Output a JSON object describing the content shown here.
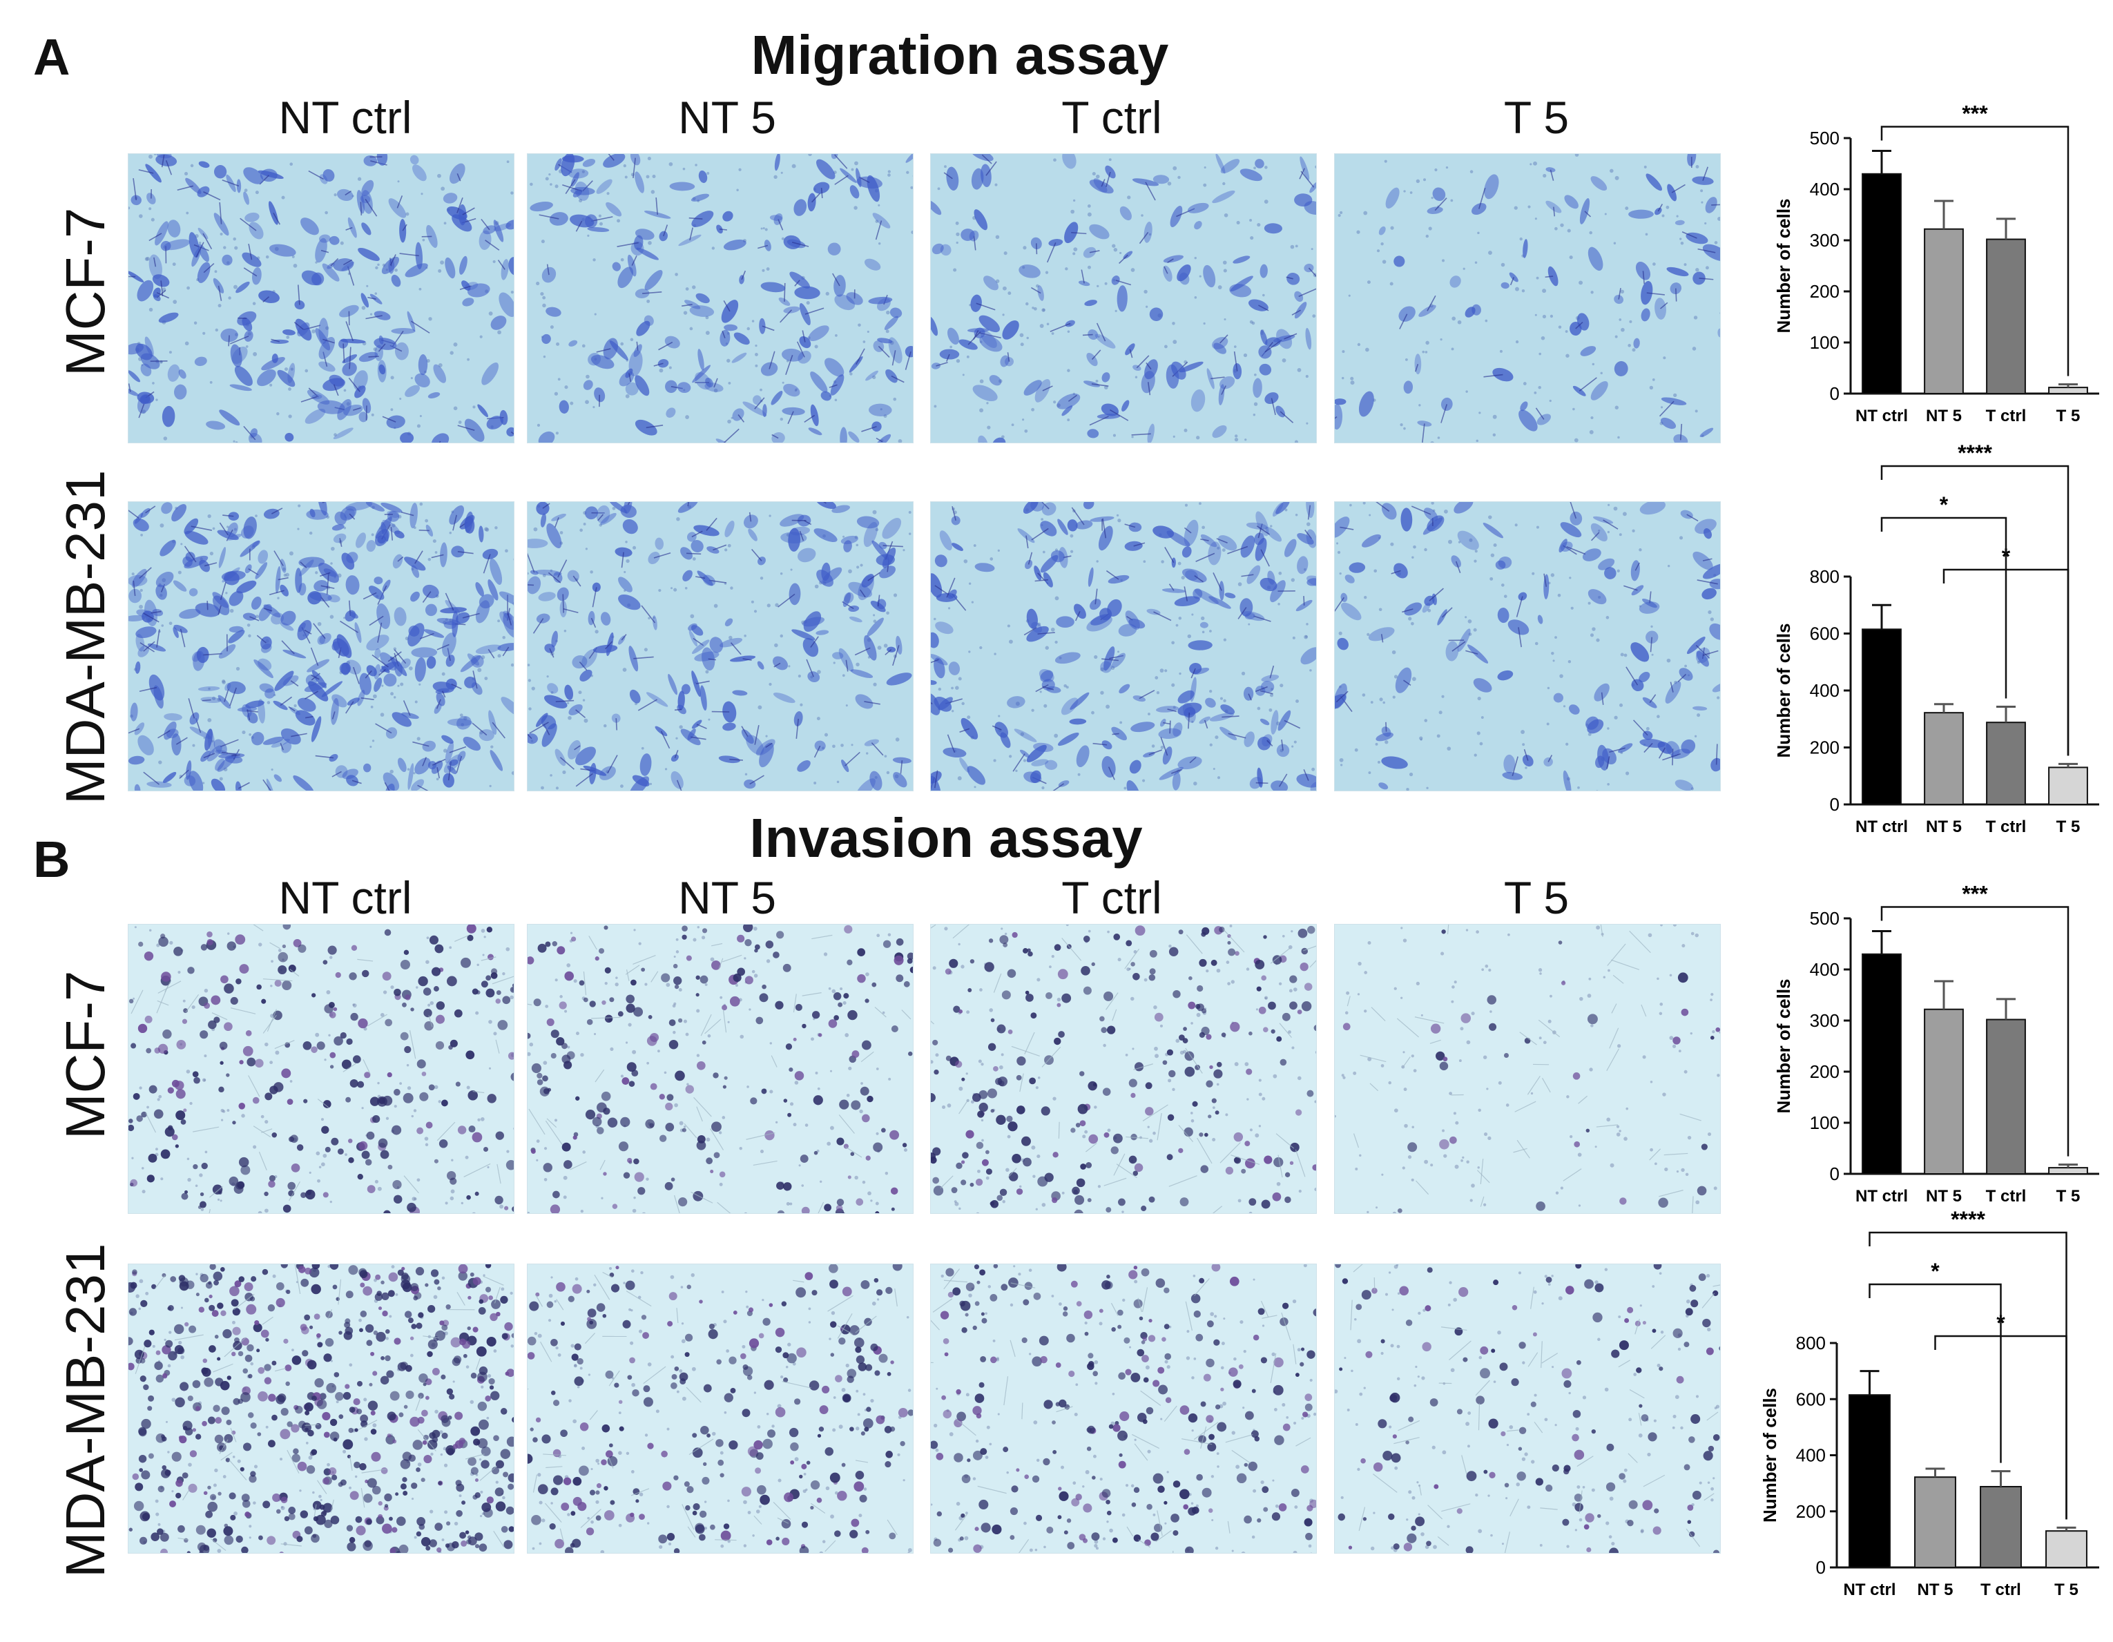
{
  "panels": [
    {
      "letter": "A",
      "title": "Migration assay",
      "columns": [
        "NT ctrl",
        "NT 5",
        "T ctrl",
        "T 5"
      ],
      "rows": [
        "MCF-7",
        "MDA-MB-231"
      ]
    },
    {
      "letter": "B",
      "title": "Invasion assay",
      "columns": [
        "NT ctrl",
        "NT 5",
        "T ctrl",
        "T 5"
      ],
      "rows": [
        "MCF-7",
        "MDA-MB-231"
      ]
    }
  ],
  "micrographs": {
    "migration_colors": {
      "background": "#b9dcea",
      "cell": "#3f5cc8",
      "dark": "#27308f"
    },
    "invasion_colors": {
      "background": "#d6edf4",
      "cell": "#2e2f68",
      "dark": "#1c1f3d",
      "purple": "#6e4d9a"
    }
  },
  "chart_data": [
    {
      "type": "bar",
      "categories": [
        "NT ctrl",
        "NT 5",
        "T ctrl",
        "T 5"
      ],
      "values": [
        430,
        322,
        302,
        12
      ],
      "errors": [
        45,
        55,
        40,
        6
      ],
      "ylabel": "Number of cells",
      "ylim": [
        0,
        500
      ],
      "yticks": [
        "0",
        "100",
        "200",
        "300",
        "400",
        "500"
      ],
      "colors": [
        "#000000",
        "#9e9e9e",
        "#7a7a7a",
        "#d6d6d6"
      ],
      "significance": [
        {
          "from": 0,
          "to": 3,
          "label": "***"
        }
      ]
    },
    {
      "type": "bar",
      "categories": [
        "NT ctrl",
        "NT 5",
        "T ctrl",
        "T 5"
      ],
      "values": [
        615,
        322,
        288,
        130
      ],
      "errors": [
        85,
        30,
        55,
        12
      ],
      "ylabel": "Number of cells",
      "ylim": [
        0,
        800
      ],
      "yticks": [
        "0",
        "200",
        "400",
        "600",
        "800"
      ],
      "colors": [
        "#000000",
        "#9e9e9e",
        "#7a7a7a",
        "#d6d6d6"
      ],
      "significance": [
        {
          "from": 0,
          "to": 3,
          "label": "****"
        },
        {
          "from": 1,
          "to": 3,
          "label": "*"
        },
        {
          "from": 0,
          "to": 2,
          "label": "*"
        }
      ]
    },
    {
      "type": "bar",
      "categories": [
        "NT ctrl",
        "NT 5",
        "T ctrl",
        "T 5"
      ],
      "values": [
        430,
        322,
        302,
        12
      ],
      "errors": [
        45,
        55,
        40,
        6
      ],
      "ylabel": "Number of cells",
      "ylim": [
        0,
        500
      ],
      "yticks": [
        "0",
        "100",
        "200",
        "300",
        "400",
        "500"
      ],
      "colors": [
        "#000000",
        "#9e9e9e",
        "#7a7a7a",
        "#d6d6d6"
      ],
      "significance": [
        {
          "from": 0,
          "to": 3,
          "label": "***"
        }
      ]
    },
    {
      "type": "bar",
      "categories": [
        "NT ctrl",
        "NT 5",
        "T ctrl",
        "T 5"
      ],
      "values": [
        615,
        322,
        288,
        130
      ],
      "errors": [
        85,
        30,
        55,
        12
      ],
      "ylabel": "Number of cells",
      "ylim": [
        0,
        800
      ],
      "yticks": [
        "0",
        "200",
        "400",
        "600",
        "800"
      ],
      "colors": [
        "#000000",
        "#9e9e9e",
        "#7a7a7a",
        "#d6d6d6"
      ],
      "significance": [
        {
          "from": 0,
          "to": 3,
          "label": "****"
        },
        {
          "from": 1,
          "to": 3,
          "label": "*"
        },
        {
          "from": 0,
          "to": 2,
          "label": "*"
        }
      ]
    }
  ]
}
